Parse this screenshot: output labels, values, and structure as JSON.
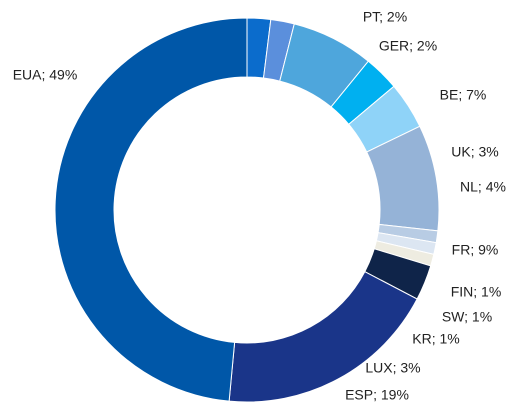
{
  "chart_data": {
    "type": "donut",
    "values": [
      2,
      2,
      7,
      3,
      4,
      9,
      1,
      1,
      1,
      3,
      19,
      49
    ],
    "value_labels": [
      "PT; 2%",
      "GER; 2%",
      "BE; 7%",
      "UK; 3%",
      "NL; 4%",
      "FR; 9%",
      "FIN; 1%",
      "SW; 1%",
      "KR; 1%",
      "LUX; 3%",
      "ESP; 19%",
      "EUA; 49%"
    ],
    "colors": [
      "#0b6ccc",
      "#5b8fdc",
      "#4ea6dc",
      "#00b0f0",
      "#8fd3f8",
      "#95b3d7",
      "#b8cce4",
      "#dce6f2",
      "#eeece1",
      "#0f2449",
      "#1a3589",
      "#0057a8"
    ]
  }
}
